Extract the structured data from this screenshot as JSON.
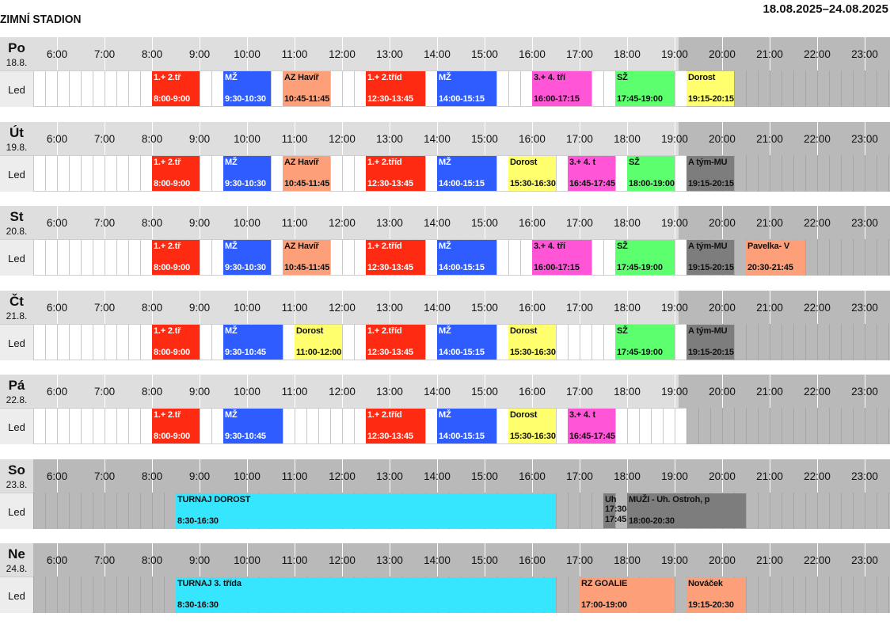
{
  "title": "ZIMNÍ STADION",
  "date_range": "18.08.2025–24.08.2025",
  "row_label": "Led",
  "hours": [
    "6:00",
    "7:00",
    "8:00",
    "9:00",
    "10:00",
    "11:00",
    "12:00",
    "13:00",
    "14:00",
    "15:00",
    "16:00",
    "17:00",
    "18:00",
    "19:00",
    "20:00",
    "21:00",
    "22:00",
    "23:00"
  ],
  "colors": {
    "red": "#ff2a12",
    "blue": "#2f5cff",
    "salmon": "#fda07a",
    "magenta": "#ff55d6",
    "green": "#5cff6e",
    "yellow": "#ffff6e",
    "gray": "#7d7d7d",
    "cyan": "#36e6ff",
    "header": "#dedede",
    "dimmed": "#b9b9b9"
  },
  "days": [
    {
      "name": "Po",
      "date": "18.8.",
      "dim_from_hour": 19.083,
      "weekend": false,
      "events": [
        {
          "label": "1.+ 2.tř",
          "time": "8:00-9:00",
          "start": 8.0,
          "end": 9.0,
          "color": "red"
        },
        {
          "label": "MŽ",
          "time": "9:30-10:30",
          "start": 9.5,
          "end": 10.5,
          "color": "blue"
        },
        {
          "label": "AZ Havíř",
          "time": "10:45-11:45",
          "start": 10.75,
          "end": 11.75,
          "color": "salmon"
        },
        {
          "label": "1.+ 2.tříd",
          "time": "12:30-13:45",
          "start": 12.5,
          "end": 13.75,
          "color": "red"
        },
        {
          "label": "MŽ",
          "time": "14:00-15:15",
          "start": 14.0,
          "end": 15.25,
          "color": "blue"
        },
        {
          "label": "3.+ 4. tří",
          "time": "16:00-17:15",
          "start": 16.0,
          "end": 17.25,
          "color": "magenta"
        },
        {
          "label": "SŽ",
          "time": "17:45-19:00",
          "start": 17.75,
          "end": 19.0,
          "color": "green"
        },
        {
          "label": "Dorost",
          "time": "19:15-20:15",
          "start": 19.25,
          "end": 20.25,
          "color": "yellow"
        }
      ]
    },
    {
      "name": "Út",
      "date": "19.8.",
      "dim_from_hour": 19.083,
      "weekend": false,
      "events": [
        {
          "label": "1.+ 2.tř",
          "time": "8:00-9:00",
          "start": 8.0,
          "end": 9.0,
          "color": "red"
        },
        {
          "label": "MŽ",
          "time": "9:30-10:30",
          "start": 9.5,
          "end": 10.5,
          "color": "blue"
        },
        {
          "label": "AZ Havíř",
          "time": "10:45-11:45",
          "start": 10.75,
          "end": 11.75,
          "color": "salmon"
        },
        {
          "label": "1.+ 2.tříd",
          "time": "12:30-13:45",
          "start": 12.5,
          "end": 13.75,
          "color": "red"
        },
        {
          "label": "MŽ",
          "time": "14:00-15:15",
          "start": 14.0,
          "end": 15.25,
          "color": "blue"
        },
        {
          "label": "Dorost",
          "time": "15:30-16:30",
          "start": 15.5,
          "end": 16.5,
          "color": "yellow"
        },
        {
          "label": "3.+ 4. t",
          "time": "16:45-17:45",
          "start": 16.75,
          "end": 17.75,
          "color": "magenta"
        },
        {
          "label": "SŽ",
          "time": "18:00-19:00",
          "start": 18.0,
          "end": 19.0,
          "color": "green"
        },
        {
          "label": "A tým-MU",
          "time": "19:15-20:15",
          "start": 19.25,
          "end": 20.25,
          "color": "gray"
        }
      ]
    },
    {
      "name": "St",
      "date": "20.8.",
      "dim_from_hour": 19.083,
      "weekend": false,
      "events": [
        {
          "label": "1.+ 2.tř",
          "time": "8:00-9:00",
          "start": 8.0,
          "end": 9.0,
          "color": "red"
        },
        {
          "label": "MŽ",
          "time": "9:30-10:30",
          "start": 9.5,
          "end": 10.5,
          "color": "blue"
        },
        {
          "label": "AZ Havíř",
          "time": "10:45-11:45",
          "start": 10.75,
          "end": 11.75,
          "color": "salmon"
        },
        {
          "label": "1.+ 2.tříd",
          "time": "12:30-13:45",
          "start": 12.5,
          "end": 13.75,
          "color": "red"
        },
        {
          "label": "MŽ",
          "time": "14:00-15:15",
          "start": 14.0,
          "end": 15.25,
          "color": "blue"
        },
        {
          "label": "3.+ 4. tří",
          "time": "16:00-17:15",
          "start": 16.0,
          "end": 17.25,
          "color": "magenta"
        },
        {
          "label": "SŽ",
          "time": "17:45-19:00",
          "start": 17.75,
          "end": 19.0,
          "color": "green"
        },
        {
          "label": "A tým-MU",
          "time": "19:15-20:15",
          "start": 19.25,
          "end": 20.25,
          "color": "gray"
        },
        {
          "label": "Pavelka- V",
          "time": "20:30-21:45",
          "start": 20.5,
          "end": 21.75,
          "color": "salmon"
        }
      ]
    },
    {
      "name": "Čt",
      "date": "21.8.",
      "dim_from_hour": 19.083,
      "weekend": false,
      "events": [
        {
          "label": "1.+ 2.tř",
          "time": "8:00-9:00",
          "start": 8.0,
          "end": 9.0,
          "color": "red"
        },
        {
          "label": "MŽ",
          "time": "9:30-10:45",
          "start": 9.5,
          "end": 10.75,
          "color": "blue"
        },
        {
          "label": "Dorost",
          "time": "11:00-12:00",
          "start": 11.0,
          "end": 12.0,
          "color": "yellow"
        },
        {
          "label": "1.+ 2.tříd",
          "time": "12:30-13:45",
          "start": 12.5,
          "end": 13.75,
          "color": "red"
        },
        {
          "label": "MŽ",
          "time": "14:00-15:15",
          "start": 14.0,
          "end": 15.25,
          "color": "blue"
        },
        {
          "label": "Dorost",
          "time": "15:30-16:30",
          "start": 15.5,
          "end": 16.5,
          "color": "yellow"
        },
        {
          "label": "SŽ",
          "time": "17:45-19:00",
          "start": 17.75,
          "end": 19.0,
          "color": "green"
        },
        {
          "label": "A tým-MU",
          "time": "19:15-20:15",
          "start": 19.25,
          "end": 20.25,
          "color": "gray"
        }
      ]
    },
    {
      "name": "Pá",
      "date": "22.8.",
      "dim_from_hour": 19.083,
      "weekend": false,
      "events": [
        {
          "label": "1.+ 2.tř",
          "time": "8:00-9:00",
          "start": 8.0,
          "end": 9.0,
          "color": "red"
        },
        {
          "label": "MŽ",
          "time": "9:30-10:45",
          "start": 9.5,
          "end": 10.75,
          "color": "blue"
        },
        {
          "label": "1.+ 2.tříd",
          "time": "12:30-13:45",
          "start": 12.5,
          "end": 13.75,
          "color": "red"
        },
        {
          "label": "MŽ",
          "time": "14:00-15:15",
          "start": 14.0,
          "end": 15.25,
          "color": "blue"
        },
        {
          "label": "Dorost",
          "time": "15:30-16:30",
          "start": 15.5,
          "end": 16.5,
          "color": "yellow"
        },
        {
          "label": "3.+ 4. t",
          "time": "16:45-17:45",
          "start": 16.75,
          "end": 17.75,
          "color": "magenta"
        }
      ]
    },
    {
      "name": "So",
      "date": "23.8.",
      "dim_from_hour": 5.5,
      "weekend": true,
      "events": [
        {
          "label": "TURNAJ DOROST",
          "time": "8:30-16:30",
          "start": 8.5,
          "end": 16.5,
          "color": "cyan"
        },
        {
          "label": "Uh",
          "time": "17:30-17:45",
          "start": 17.5,
          "end": 17.75,
          "color": "gray"
        },
        {
          "label": "MUŽI - Uh. Ostroh, p",
          "time": "18:00-20:30",
          "start": 18.0,
          "end": 20.5,
          "color": "gray"
        }
      ]
    },
    {
      "name": "Ne",
      "date": "24.8.",
      "dim_from_hour": 5.5,
      "weekend": true,
      "events": [
        {
          "label": "TURNAJ 3. třída",
          "time": "8:30-16:30",
          "start": 8.5,
          "end": 16.5,
          "color": "cyan"
        },
        {
          "label": "RZ GOALIE",
          "time": "17:00-19:00",
          "start": 17.0,
          "end": 19.0,
          "color": "salmon"
        },
        {
          "label": "Nováček",
          "time": "19:15-20:30",
          "start": 19.25,
          "end": 20.5,
          "color": "salmon"
        }
      ]
    }
  ]
}
